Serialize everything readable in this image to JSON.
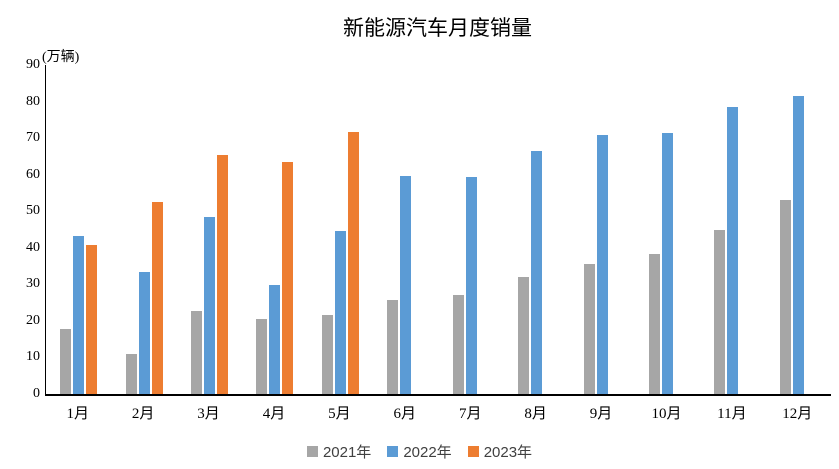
{
  "chart_data": {
    "type": "bar",
    "title": "新能源汽车月度销量",
    "unit_label": "(万辆)",
    "categories": [
      "1月",
      "2月",
      "3月",
      "4月",
      "5月",
      "6月",
      "7月",
      "8月",
      "9月",
      "10月",
      "11月",
      "12月"
    ],
    "series": [
      {
        "name": "2021年",
        "color": "#A6A6A6",
        "values": [
          17.9,
          11.0,
          22.6,
          20.6,
          21.7,
          25.6,
          27.1,
          32.1,
          35.7,
          38.3,
          45.0,
          53.1
        ]
      },
      {
        "name": "2022年",
        "color": "#5B9BD5",
        "values": [
          43.1,
          33.4,
          48.4,
          29.9,
          44.7,
          59.6,
          59.3,
          66.6,
          70.8,
          71.4,
          78.6,
          81.4
        ]
      },
      {
        "name": "2023年",
        "color": "#ED7D31",
        "values": [
          40.8,
          52.5,
          65.3,
          63.6,
          71.7,
          null,
          null,
          null,
          null,
          null,
          null,
          null
        ]
      }
    ],
    "xlabel": "",
    "ylabel": "(万辆)",
    "ylim": [
      0,
      90
    ],
    "yticks": [
      0,
      10,
      20,
      30,
      40,
      50,
      60,
      70,
      80,
      90
    ],
    "grid": false,
    "legend_position": "bottom",
    "axis_color": "#000000",
    "legend_text_color": "#404040",
    "background_color": "#FFFFFF"
  }
}
